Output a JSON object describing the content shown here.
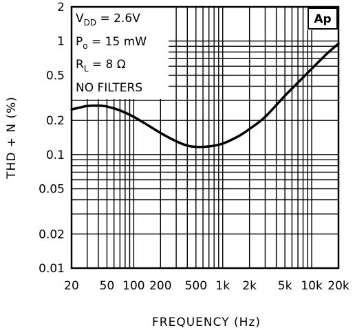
{
  "chart_data": {
    "type": "line",
    "title": "",
    "xlabel": "FREQUENCY (Hz)",
    "ylabel": "THD + N (%)",
    "x_scale": "log",
    "y_scale": "log",
    "xlim": [
      20,
      20000
    ],
    "ylim": [
      0.01,
      2
    ],
    "grid": true,
    "x_tick_labels": [
      {
        "value": 20,
        "label": "20"
      },
      {
        "value": 50,
        "label": "50"
      },
      {
        "value": 100,
        "label": "100"
      },
      {
        "value": 200,
        "label": "200"
      },
      {
        "value": 500,
        "label": "500"
      },
      {
        "value": 1000,
        "label": "1k"
      },
      {
        "value": 2000,
        "label": "2k"
      },
      {
        "value": 5000,
        "label": "5k"
      },
      {
        "value": 10000,
        "label": "10k"
      },
      {
        "value": 20000,
        "label": "20k"
      }
    ],
    "y_tick_labels": [
      {
        "value": 0.01,
        "label": "0.01"
      },
      {
        "value": 0.02,
        "label": "0.02"
      },
      {
        "value": 0.05,
        "label": "0.05"
      },
      {
        "value": 0.1,
        "label": "0.1"
      },
      {
        "value": 0.2,
        "label": "0.2"
      },
      {
        "value": 0.5,
        "label": "0.5"
      },
      {
        "value": 1,
        "label": "1"
      },
      {
        "value": 2,
        "label": "2"
      }
    ],
    "conditions": {
      "vdd": {
        "main": "V",
        "sub": "DD",
        "rest": " = 2.6V"
      },
      "po": {
        "main": "P",
        "sub": "o",
        "rest": " = 15 mW"
      },
      "rl": {
        "main": "R",
        "sub": "L",
        "rest": " = 8 Ω"
      },
      "filters": "NO FILTERS"
    },
    "logo": "Ap",
    "series": [
      {
        "x": [
          20,
          25,
          30,
          40,
          50,
          70,
          100,
          150,
          200,
          300,
          400,
          500,
          700,
          1000,
          1500,
          2000,
          3000,
          5000,
          7000,
          10000,
          15000,
          20000
        ],
        "y": [
          0.25,
          0.26,
          0.268,
          0.27,
          0.265,
          0.245,
          0.215,
          0.178,
          0.155,
          0.131,
          0.12,
          0.117,
          0.118,
          0.125,
          0.145,
          0.168,
          0.215,
          0.33,
          0.43,
          0.57,
          0.78,
          0.95
        ]
      }
    ]
  }
}
